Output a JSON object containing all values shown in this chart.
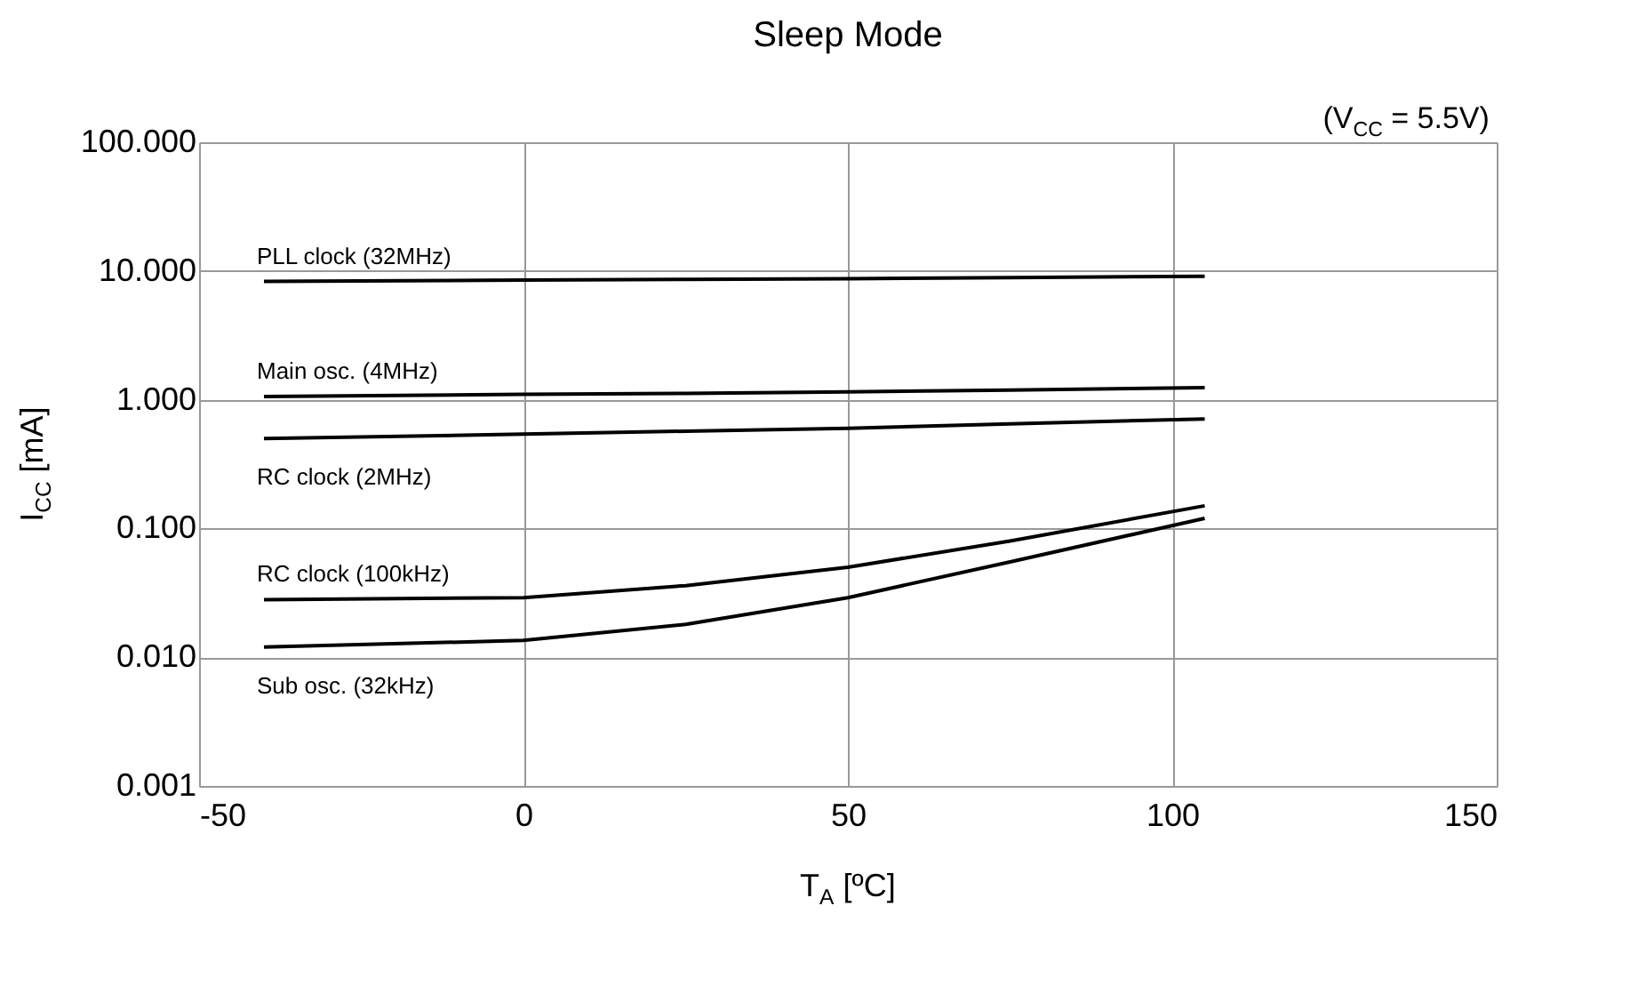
{
  "chart_data": {
    "type": "line",
    "title": "Sleep Mode",
    "xlabel": "T$_{A}$ [ºC]",
    "ylabel": "I$_{CC}$ [mA]",
    "annotations": [
      "(V$_{CC}$ = 5.5V)"
    ],
    "x": [
      -40,
      0,
      25,
      50,
      75,
      105
    ],
    "series": [
      {
        "name": "PLL clock (32MHz)",
        "color": "#000000",
        "values": [
          8.3,
          8.5,
          8.6,
          8.7,
          8.9,
          9.1
        ]
      },
      {
        "name": "Main osc. (4MHz)",
        "color": "#000000",
        "values": [
          1.06,
          1.1,
          1.12,
          1.15,
          1.19,
          1.24
        ]
      },
      {
        "name": "RC clock (2MHz)",
        "color": "#000000",
        "values": [
          0.5,
          0.54,
          0.57,
          0.6,
          0.65,
          0.71
        ]
      },
      {
        "name": "RC clock (100kHz)",
        "color": "#000000",
        "values": [
          0.028,
          0.029,
          0.036,
          0.05,
          0.08,
          0.15
        ]
      },
      {
        "name": "Sub osc. (32kHz)",
        "color": "#000000",
        "values": [
          0.012,
          0.0135,
          0.018,
          0.029,
          0.055,
          0.12
        ]
      }
    ],
    "xlim": [
      -50,
      150
    ],
    "xticks": [
      -50,
      0,
      50,
      100,
      150
    ],
    "ylim": [
      0.001,
      100
    ],
    "yticks": [
      {
        "value": 100,
        "label": "100.000"
      },
      {
        "value": 10,
        "label": "10.000"
      },
      {
        "value": 1,
        "label": "1.000"
      },
      {
        "value": 0.1,
        "label": "0.100"
      },
      {
        "value": 0.01,
        "label": "0.010"
      },
      {
        "value": 0.001,
        "label": "0.001"
      }
    ],
    "log": true,
    "grid": true,
    "marker": "none",
    "line_style": "solid"
  }
}
